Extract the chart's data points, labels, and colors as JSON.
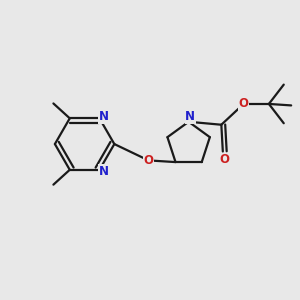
{
  "bg_color": "#e8e8e8",
  "bond_color": "#1a1a1a",
  "nitrogen_color": "#2020cc",
  "oxygen_color": "#cc2020",
  "lw": 1.6,
  "fs": 8.5,
  "figsize": [
    3.0,
    3.0
  ],
  "dpi": 100,
  "xlim": [
    0,
    10
  ],
  "ylim": [
    0,
    10
  ]
}
